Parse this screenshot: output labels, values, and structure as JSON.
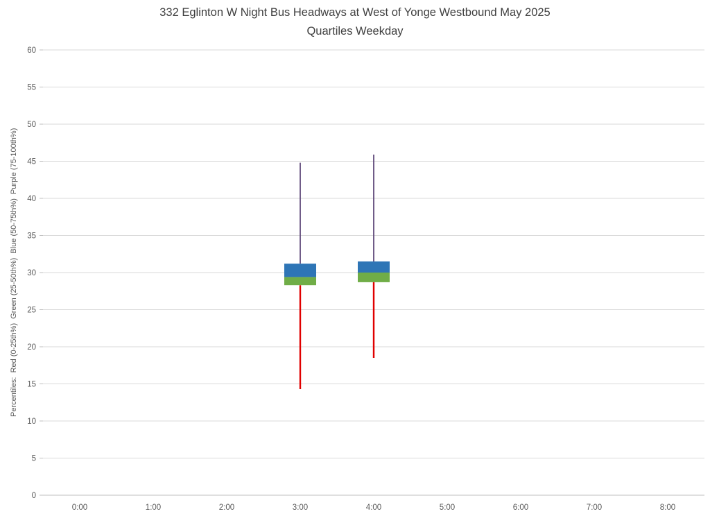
{
  "chart_data": {
    "type": "boxplot",
    "title": "332 Eglinton W Night Bus Headways at West of Yonge Westbound May 2025",
    "subtitle": "Quartiles Weekday",
    "ylabel": "Percentiles:  Red (0-25th%)  Green (25-50th%)  Blue (50-75th%)  Purple (75-100th%)",
    "xlabel": "",
    "categories": [
      "0:00",
      "1:00",
      "2:00",
      "3:00",
      "4:00",
      "5:00",
      "6:00",
      "7:00",
      "8:00"
    ],
    "ylim": [
      0,
      60
    ],
    "ytick_step": 5,
    "yticks": [
      0,
      5,
      10,
      15,
      20,
      25,
      30,
      35,
      40,
      45,
      50,
      55,
      60
    ],
    "grid": true,
    "legend_position": "none",
    "series": [
      {
        "category": "3:00",
        "min": 14.3,
        "q1": 28.3,
        "median": 29.4,
        "q3": 31.2,
        "max": 44.8
      },
      {
        "category": "4:00",
        "min": 18.5,
        "q1": 28.7,
        "median": 30.0,
        "q3": 31.5,
        "max": 45.9
      }
    ],
    "colors": {
      "whisker_low": "#E00000",
      "box_low": "#70AD47",
      "box_high": "#2E75B6",
      "whisker_high": "#604A7B",
      "gridline": "#D9D9D9",
      "axis_line": "#BFBFBF",
      "axis_text": "#595959",
      "title_text": "#404040"
    }
  }
}
